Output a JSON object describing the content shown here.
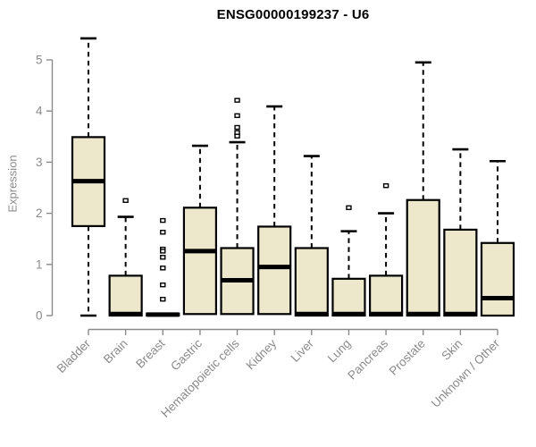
{
  "chart_data": {
    "type": "boxplot",
    "title": "ENSG00000199237 - U6",
    "xlabel": "",
    "ylabel": "Expression",
    "ylim": [
      0,
      5.5
    ],
    "yticks": [
      0,
      1,
      2,
      3,
      4,
      5
    ],
    "grid": false,
    "legend_position": "none",
    "categories": [
      "Bladder",
      "Brain",
      "Breast",
      "Gastric",
      "Hematopoietic cells",
      "Kidney",
      "Liver",
      "Lung",
      "Pancreas",
      "Prostate",
      "Skin",
      "Unknown / Other"
    ],
    "series": [
      {
        "category": "Bladder",
        "whisker_low": 0.0,
        "q1": 1.75,
        "median": 2.63,
        "q3": 3.49,
        "whisker_high": 5.42,
        "outliers": []
      },
      {
        "category": "Brain",
        "whisker_low": 0.0,
        "q1": 0.0,
        "median": 0.03,
        "q3": 0.78,
        "whisker_high": 1.93,
        "outliers": [
          2.25
        ]
      },
      {
        "category": "Breast",
        "whisker_low": 0.0,
        "q1": 0.0,
        "median": 0.02,
        "q3": 0.04,
        "whisker_high": 0.04,
        "outliers": [
          1.86,
          1.63,
          1.3,
          1.26,
          1.14,
          0.93,
          0.6,
          0.32
        ]
      },
      {
        "category": "Gastric",
        "whisker_low": 0.0,
        "q1": 0.03,
        "median": 1.26,
        "q3": 2.11,
        "whisker_high": 3.32,
        "outliers": []
      },
      {
        "category": "Hematopoietic cells",
        "whisker_low": 0.0,
        "q1": 0.03,
        "median": 0.69,
        "q3": 1.32,
        "whisker_high": 3.39,
        "outliers": [
          4.21,
          3.91,
          3.68,
          3.58,
          3.51
        ]
      },
      {
        "category": "Kidney",
        "whisker_low": 0.0,
        "q1": 0.03,
        "median": 0.95,
        "q3": 1.74,
        "whisker_high": 4.09,
        "outliers": []
      },
      {
        "category": "Liver",
        "whisker_low": 0.0,
        "q1": 0.0,
        "median": 0.03,
        "q3": 1.32,
        "whisker_high": 3.12,
        "outliers": []
      },
      {
        "category": "Lung",
        "whisker_low": 0.0,
        "q1": 0.0,
        "median": 0.03,
        "q3": 0.72,
        "whisker_high": 1.65,
        "outliers": [
          2.11
        ]
      },
      {
        "category": "Pancreas",
        "whisker_low": 0.0,
        "q1": 0.0,
        "median": 0.03,
        "q3": 0.78,
        "whisker_high": 2.0,
        "outliers": [
          2.54
        ]
      },
      {
        "category": "Prostate",
        "whisker_low": 0.0,
        "q1": 0.0,
        "median": 0.03,
        "q3": 2.26,
        "whisker_high": 4.95,
        "outliers": []
      },
      {
        "category": "Skin",
        "whisker_low": 0.0,
        "q1": 0.0,
        "median": 0.03,
        "q3": 1.68,
        "whisker_high": 3.25,
        "outliers": []
      },
      {
        "category": "Unknown / Other",
        "whisker_low": 0.0,
        "q1": 0.0,
        "median": 0.34,
        "q3": 1.42,
        "whisker_high": 3.02,
        "outliers": []
      }
    ]
  },
  "colors": {
    "box_fill": "#EDE7CB",
    "box_border": "#000000",
    "median_line": "#000000",
    "whisker": "#000000",
    "outlier_stroke": "#000000",
    "outlier_fill": "#FFFFFF",
    "axis": "#8A8A8A",
    "tick_label": "#8A8A8A",
    "title_color": "#000000"
  }
}
